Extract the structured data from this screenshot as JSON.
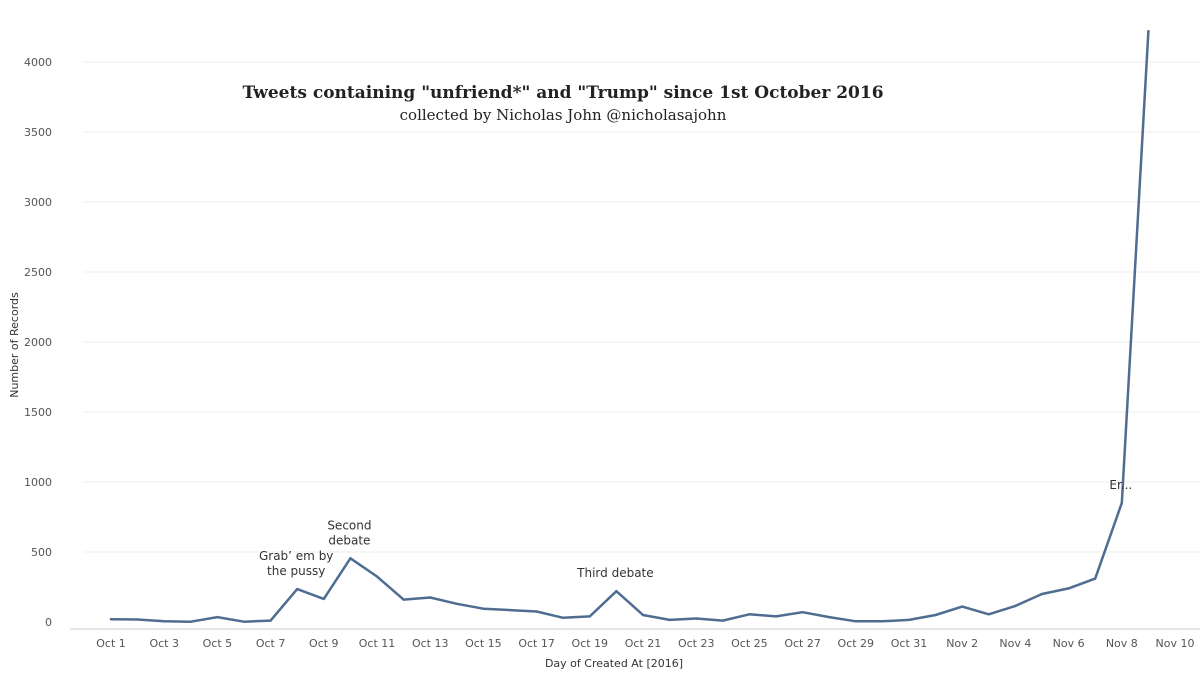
{
  "chart_data": {
    "type": "line",
    "title": "Tweets containing \"unfriend*\" and \"Trump\" since 1st October 2016",
    "subtitle": "collected by Nicholas John @nicholasajohn",
    "xlabel": "Day of Created At [2016]",
    "ylabel": "Number of Records",
    "ylim": [
      0,
      4300
    ],
    "y_ticks": [
      0,
      500,
      1000,
      1500,
      2000,
      2500,
      3000,
      3500,
      4000
    ],
    "x_ticks": [
      "Oct 1",
      "Oct 3",
      "Oct 5",
      "Oct 7",
      "Oct 9",
      "Oct 11",
      "Oct 13",
      "Oct 15",
      "Oct 17",
      "Oct 19",
      "Oct 21",
      "Oct 23",
      "Oct 25",
      "Oct 27",
      "Oct 29",
      "Oct 31",
      "Nov 2",
      "Nov 4",
      "Nov 6",
      "Nov 8",
      "Nov 10"
    ],
    "x": [
      "Oct 1",
      "Oct 2",
      "Oct 3",
      "Oct 4",
      "Oct 5",
      "Oct 6",
      "Oct 7",
      "Oct 8",
      "Oct 9",
      "Oct 10",
      "Oct 11",
      "Oct 12",
      "Oct 13",
      "Oct 14",
      "Oct 15",
      "Oct 16",
      "Oct 17",
      "Oct 18",
      "Oct 19",
      "Oct 20",
      "Oct 21",
      "Oct 22",
      "Oct 23",
      "Oct 24",
      "Oct 25",
      "Oct 26",
      "Oct 27",
      "Oct 28",
      "Oct 29",
      "Oct 30",
      "Oct 31",
      "Nov 1",
      "Nov 2",
      "Nov 3",
      "Nov 4",
      "Nov 5",
      "Nov 6",
      "Nov 7",
      "Nov 8",
      "Nov 9"
    ],
    "series": [
      {
        "values": [
          20,
          18,
          5,
          2,
          35,
          2,
          10,
          235,
          165,
          455,
          325,
          160,
          175,
          130,
          95,
          85,
          75,
          30,
          40,
          220,
          50,
          15,
          25,
          10,
          55,
          40,
          70,
          35,
          5,
          5,
          15,
          50,
          110,
          55,
          115,
          200,
          240,
          310,
          850,
          4220
        ],
        "color": "#4e6d91"
      }
    ],
    "annotations": [
      {
        "lines": [
          "Grab’ em by",
          "the pussy"
        ],
        "at": "Oct 8"
      },
      {
        "lines": [
          "Second",
          "debate"
        ],
        "at": "Oct 10"
      },
      {
        "lines": [
          "Third debate"
        ],
        "at": "Oct 20"
      },
      {
        "lines": [
          "Er..."
        ],
        "at": "Nov 8"
      }
    ],
    "grid": true,
    "legend": "none"
  }
}
